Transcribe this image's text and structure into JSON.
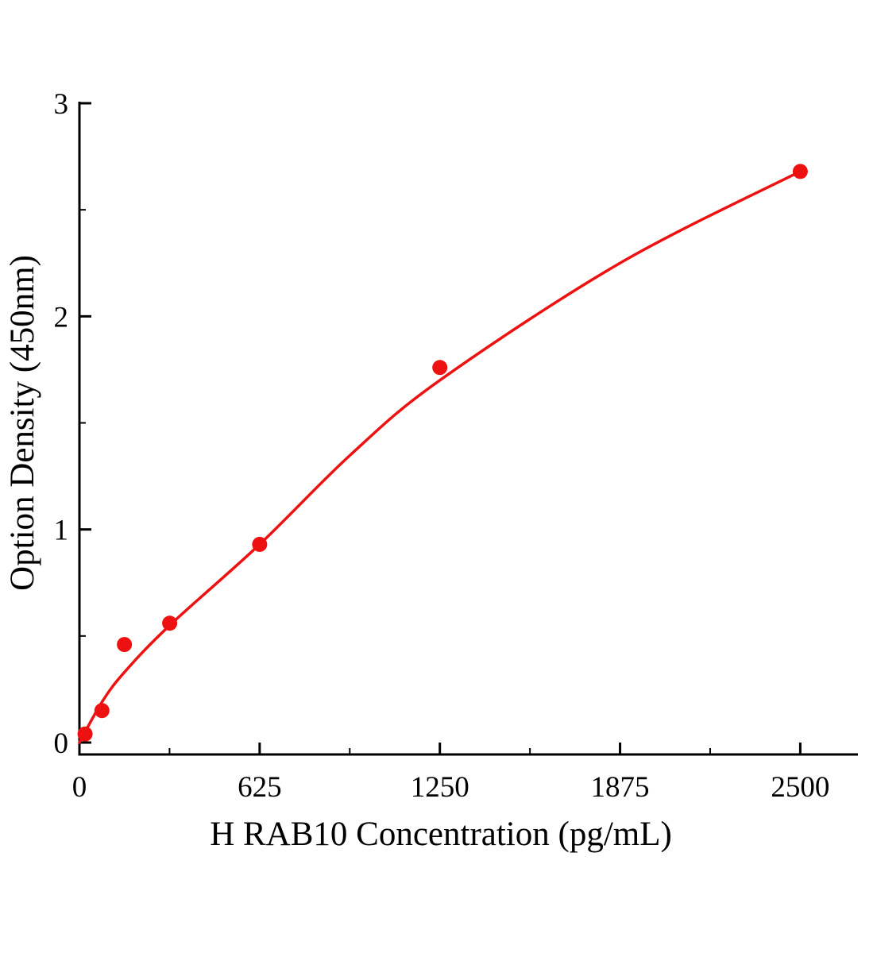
{
  "page": {
    "background": "#ffffff"
  },
  "chart_data": {
    "type": "scatter",
    "title": "",
    "xlabel": "H RAB10 Concentration（pg/mL）",
    "ylabel": "Option Density（450nm）",
    "x": [
      19.5,
      78,
      156,
      313,
      625,
      1250,
      2500
    ],
    "y": [
      0.04,
      0.15,
      0.46,
      0.56,
      0.93,
      1.76,
      2.68
    ],
    "fit_curve": {
      "x": [
        0,
        78,
        156,
        313,
        625,
        940,
        1250,
        1875,
        2500
      ],
      "y": [
        0.0,
        0.19,
        0.33,
        0.55,
        0.93,
        1.35,
        1.7,
        2.25,
        2.68
      ]
    },
    "xticks": [
      0,
      625,
      1250,
      1875,
      2500
    ],
    "yticks": [
      0,
      1,
      2,
      3
    ],
    "xlim": [
      0,
      2700
    ],
    "ylim": [
      0,
      3
    ],
    "series_color": "#ee1111",
    "axis_color": "#000000",
    "marker_size": 9.5,
    "grid": false,
    "legend": null
  }
}
